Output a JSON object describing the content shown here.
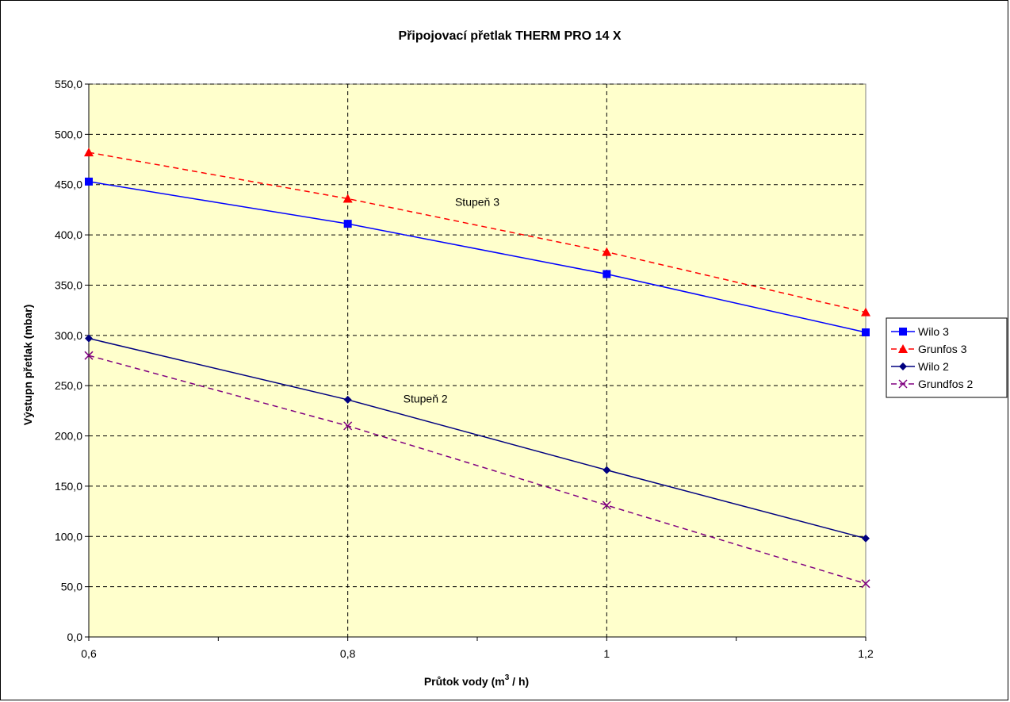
{
  "chart_data": {
    "type": "line",
    "title": "Připojovací přetlak THERM PRO 14 X",
    "xlabel": {
      "pre": "Průtok vody (m",
      "sup": "3",
      "post": " / h)"
    },
    "ylabel": "Výstupn přetlak (mbar)",
    "x": [
      0.6,
      0.8,
      1.0,
      1.2
    ],
    "x_tick_labels": [
      "0,6",
      "0,8",
      "1",
      "1,2"
    ],
    "xlim": [
      0.6,
      1.2
    ],
    "ylim": [
      0,
      550
    ],
    "y_ticks": [
      0,
      50,
      100,
      150,
      200,
      250,
      300,
      350,
      400,
      450,
      500,
      550
    ],
    "y_tick_labels": [
      "0,0",
      "50,0",
      "100,0",
      "150,0",
      "200,0",
      "250,0",
      "300,0",
      "350,0",
      "400,0",
      "450,0",
      "500,0",
      "550,0"
    ],
    "grid": true,
    "plot_background": "#FFFFCC",
    "legend_position": "right",
    "series": [
      {
        "name": "Wilo 3",
        "values": [
          453,
          411,
          361,
          303
        ],
        "color": "#0000FF",
        "dash": "solid",
        "marker": "square"
      },
      {
        "name": "Grunfos 3",
        "values": [
          482,
          436,
          383,
          323
        ],
        "color": "#FF0000",
        "dash": "dashed",
        "marker": "triangle"
      },
      {
        "name": "Wilo 2",
        "values": [
          297,
          236,
          166,
          98
        ],
        "color": "#000080",
        "dash": "solid",
        "marker": "diamond"
      },
      {
        "name": "Grundfos 2",
        "values": [
          280,
          210,
          131,
          53
        ],
        "color": "#800080",
        "dash": "dashed",
        "marker": "x"
      }
    ],
    "annotations": [
      {
        "text": "Stupeň 3",
        "x": 0.9,
        "y": 429
      },
      {
        "text": "Stupeň 2",
        "x": 0.86,
        "y": 233
      }
    ]
  }
}
